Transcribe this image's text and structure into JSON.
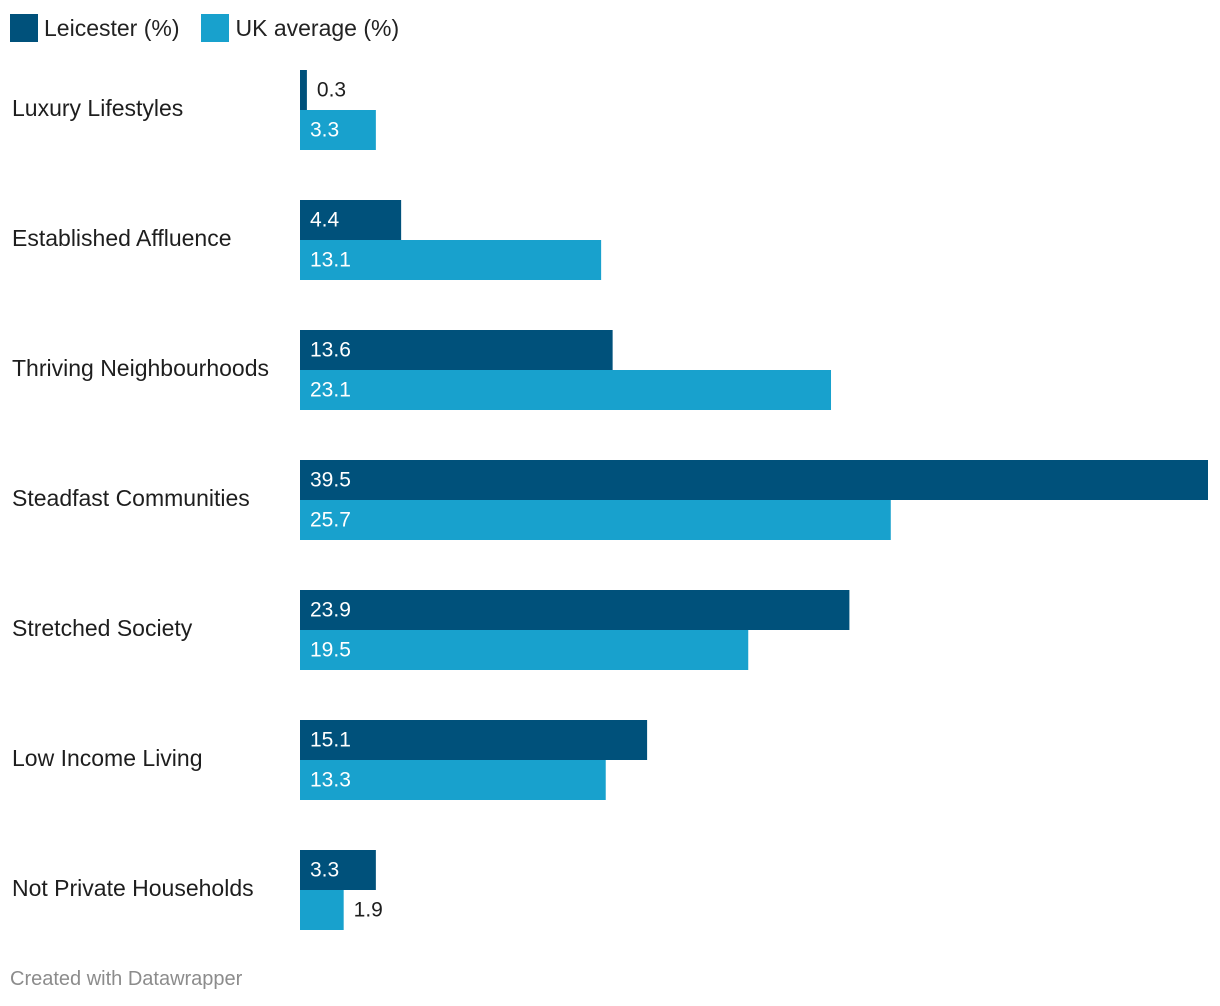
{
  "chart_data": {
    "type": "bar",
    "orientation": "horizontal",
    "grouped": true,
    "categories": [
      "Luxury Lifestyles",
      "Established Affluence",
      "Thriving Neighbourhoods",
      "Steadfast Communities",
      "Stretched Society",
      "Low Income Living",
      "Not Private Households"
    ],
    "series": [
      {
        "name": "Leicester (%)",
        "color": "#00517b",
        "values": [
          0.3,
          4.4,
          13.6,
          39.5,
          23.9,
          15.1,
          3.3
        ],
        "labels": [
          "0.3",
          "4.4",
          "13.6",
          "39.5",
          "23.9",
          "15.1",
          "3.3"
        ]
      },
      {
        "name": "UK average (%)",
        "color": "#18a1cd",
        "values": [
          3.3,
          13.1,
          23.1,
          25.7,
          19.5,
          13.3,
          1.9
        ],
        "labels": [
          "3.3",
          "13.1",
          "23.1",
          "25.7",
          "19.5",
          "13.3",
          "1.9"
        ]
      }
    ],
    "xlim": [
      0,
      39.5
    ],
    "title": "",
    "xlabel": "",
    "ylabel": "",
    "legend_position": "top-left",
    "grid": false
  },
  "footer": {
    "credit": "Created with Datawrapper"
  }
}
